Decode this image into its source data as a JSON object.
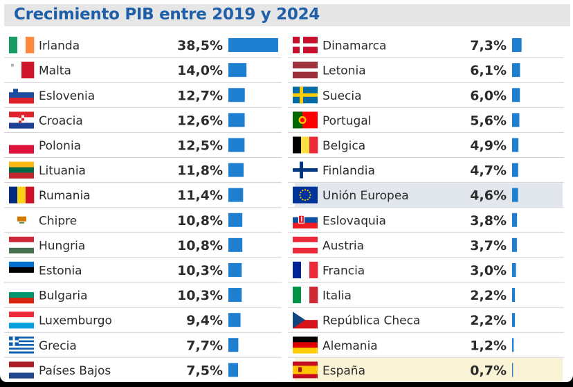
{
  "header": {
    "title": "Crecimiento PIB entre 2019 y 2024"
  },
  "colors": {
    "bar": "#1e7fd0",
    "title": "#1f5fa8",
    "row_divider": "#cfcfcf",
    "eu_highlight": "#e2e7ee",
    "spain_highlight": "#fbf3d5",
    "text": "#2b2b2b"
  },
  "chart_data": {
    "type": "bar",
    "title": "Crecimiento PIB entre 2019 y 2024",
    "unit": "%",
    "decimal_separator": ",",
    "columns": [
      {
        "categories": [
          "Irlanda",
          "Malta",
          "Eslovenia",
          "Croacia",
          "Polonia",
          "Lituania",
          "Rumania",
          "Chipre",
          "Hungria",
          "Estonia",
          "Bulgaria",
          "Luxemburgo",
          "Grecia",
          "Países Bajos"
        ],
        "values": [
          38.5,
          14.0,
          12.7,
          12.6,
          12.5,
          11.8,
          11.4,
          10.8,
          10.8,
          10.3,
          10.3,
          9.4,
          7.7,
          7.5
        ],
        "labels": [
          "38,5%",
          "14,0%",
          "12,7%",
          "12,6%",
          "12,5%",
          "11,8%",
          "11,4%",
          "10,8%",
          "10,8%",
          "10,3%",
          "10,3%",
          "9,4%",
          "7,7%",
          "7,5%"
        ],
        "flags": [
          "ireland-flag",
          "malta-flag",
          "slovenia-flag",
          "croatia-flag",
          "poland-flag",
          "lithuania-flag",
          "romania-flag",
          "cyprus-flag",
          "hungary-flag",
          "estonia-flag",
          "bulgaria-flag",
          "luxembourg-flag",
          "greece-flag",
          "netherlands-flag"
        ]
      },
      {
        "categories": [
          "Dinamarca",
          "Letonia",
          "Suecia",
          "Portugal",
          "Belgica",
          "Finlandia",
          "Unión Europea",
          "Eslovaquia",
          "Austria",
          "Francia",
          "Italia",
          "República Checa",
          "Alemania",
          "España"
        ],
        "values": [
          7.3,
          6.1,
          6.0,
          5.6,
          4.9,
          4.7,
          4.6,
          3.8,
          3.7,
          3.0,
          2.2,
          2.2,
          1.2,
          0.7
        ],
        "labels": [
          "7,3%",
          "6,1%",
          "6,0%",
          "5,6%",
          "4,9%",
          "4,7%",
          "4,6%",
          "3,8%",
          "3,7%",
          "3,0%",
          "2,2%",
          "2,2%",
          "1,2%",
          "0,7%"
        ],
        "flags": [
          "denmark-flag",
          "latvia-flag",
          "sweden-flag",
          "portugal-flag",
          "belgium-flag",
          "finland-flag",
          "eu-flag",
          "slovakia-flag",
          "austria-flag",
          "france-flag",
          "italy-flag",
          "czech-flag",
          "germany-flag",
          "spain-flag"
        ],
        "highlighted": [
          "Unión Europea",
          "España"
        ]
      }
    ],
    "xlim": [
      0,
      38.5
    ],
    "grid": false,
    "legend": "none"
  }
}
